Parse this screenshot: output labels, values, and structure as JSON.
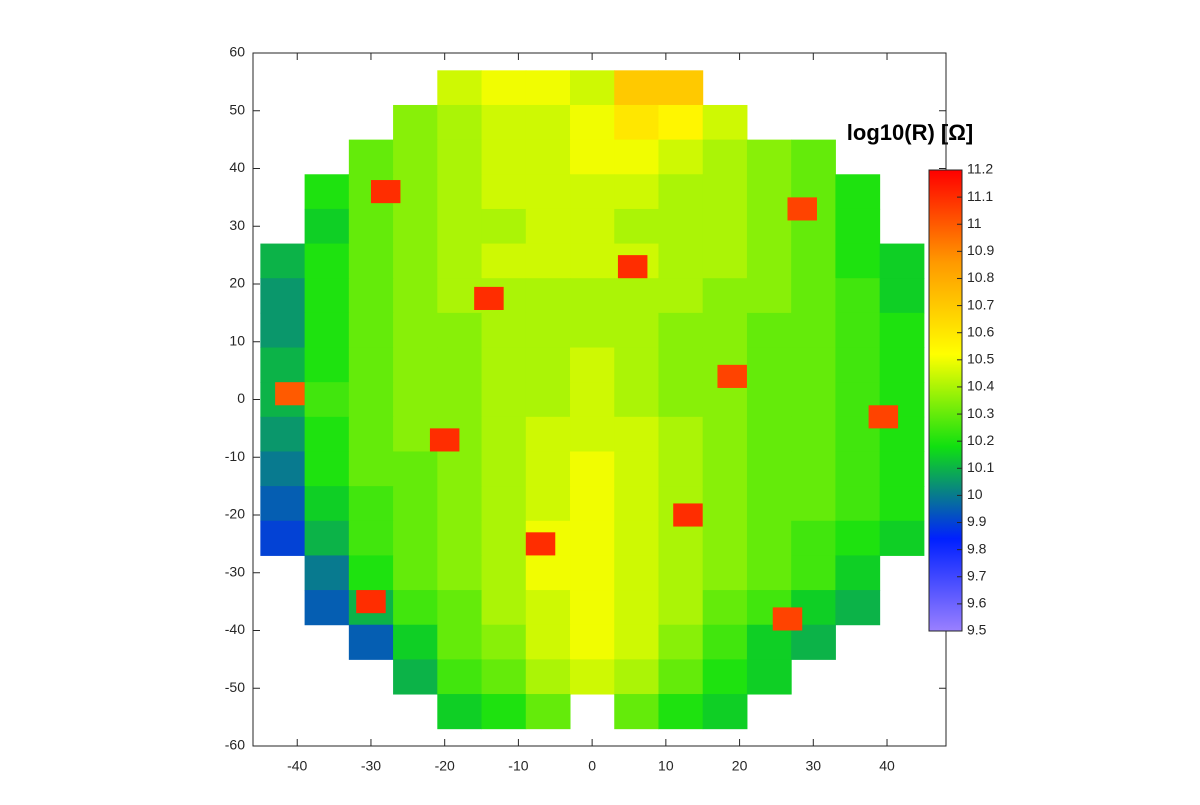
{
  "chart_data": {
    "type": "heatmap",
    "colorbar_label": "log10(R) [Ω]",
    "x": [
      -42,
      -36,
      -30,
      -24,
      -18,
      -12,
      -6,
      0,
      6,
      12,
      18,
      24,
      30,
      36,
      42
    ],
    "y": [
      54,
      48,
      42,
      36,
      30,
      24,
      18,
      12,
      6,
      0,
      -6,
      -12,
      -18,
      -24,
      -30,
      -36,
      -42,
      -48,
      -54
    ],
    "values": [
      [
        null,
        null,
        null,
        null,
        10.45,
        10.5,
        10.5,
        10.45,
        10.7,
        10.7,
        null,
        null,
        null,
        null,
        null
      ],
      [
        null,
        null,
        null,
        10.35,
        10.4,
        10.45,
        10.45,
        10.5,
        10.6,
        10.55,
        10.45,
        null,
        null,
        null,
        null
      ],
      [
        null,
        null,
        10.3,
        10.35,
        10.4,
        10.45,
        10.45,
        10.5,
        10.5,
        10.45,
        10.4,
        10.35,
        10.3,
        null,
        null
      ],
      [
        null,
        10.2,
        10.3,
        10.35,
        10.4,
        10.45,
        10.45,
        10.45,
        10.45,
        10.4,
        10.4,
        10.35,
        10.3,
        10.2,
        null
      ],
      [
        null,
        10.15,
        10.3,
        10.35,
        10.4,
        10.4,
        10.45,
        10.45,
        10.4,
        10.4,
        10.4,
        10.35,
        10.3,
        10.2,
        null
      ],
      [
        10.1,
        10.2,
        10.3,
        10.35,
        10.4,
        10.45,
        10.45,
        10.45,
        10.45,
        10.4,
        10.4,
        10.35,
        10.3,
        10.2,
        10.15
      ],
      [
        10.05,
        10.2,
        10.3,
        10.35,
        10.4,
        10.4,
        10.4,
        10.4,
        10.4,
        10.4,
        10.35,
        10.35,
        10.3,
        10.25,
        10.15
      ],
      [
        10.05,
        10.2,
        10.3,
        10.35,
        10.35,
        10.4,
        10.4,
        10.4,
        10.4,
        10.35,
        10.35,
        10.3,
        10.3,
        10.25,
        10.2
      ],
      [
        10.1,
        10.2,
        10.3,
        10.35,
        10.35,
        10.4,
        10.4,
        10.45,
        10.4,
        10.35,
        10.35,
        10.3,
        10.3,
        10.25,
        10.2
      ],
      [
        10.1,
        10.25,
        10.3,
        10.35,
        10.35,
        10.4,
        10.4,
        10.45,
        10.4,
        10.35,
        10.35,
        10.3,
        10.3,
        10.25,
        10.2
      ],
      [
        10.05,
        10.2,
        10.3,
        10.35,
        10.35,
        10.4,
        10.45,
        10.45,
        10.45,
        10.4,
        10.35,
        10.3,
        10.3,
        10.25,
        10.2
      ],
      [
        10.0,
        10.2,
        10.3,
        10.3,
        10.35,
        10.4,
        10.45,
        10.5,
        10.45,
        10.4,
        10.35,
        10.3,
        10.3,
        10.25,
        10.2
      ],
      [
        9.95,
        10.15,
        10.25,
        10.3,
        10.35,
        10.4,
        10.45,
        10.5,
        10.45,
        10.4,
        10.35,
        10.3,
        10.3,
        10.25,
        10.2
      ],
      [
        9.9,
        10.1,
        10.25,
        10.3,
        10.35,
        10.4,
        10.5,
        10.5,
        10.45,
        10.4,
        10.35,
        10.3,
        10.25,
        10.2,
        10.15
      ],
      [
        null,
        10.0,
        10.2,
        10.3,
        10.35,
        10.4,
        10.5,
        10.5,
        10.45,
        10.4,
        10.35,
        10.3,
        10.25,
        10.15,
        null
      ],
      [
        null,
        9.95,
        10.1,
        10.25,
        10.3,
        10.4,
        10.45,
        10.5,
        10.45,
        10.4,
        10.3,
        10.25,
        10.15,
        10.1,
        null
      ],
      [
        null,
        null,
        9.95,
        10.15,
        10.3,
        10.35,
        10.45,
        10.5,
        10.45,
        10.35,
        10.25,
        10.15,
        10.1,
        null,
        null
      ],
      [
        null,
        null,
        null,
        10.1,
        10.25,
        10.3,
        10.4,
        10.45,
        10.4,
        10.3,
        10.2,
        10.15,
        null,
        null,
        null
      ],
      [
        null,
        null,
        null,
        null,
        10.15,
        10.2,
        10.3,
        null,
        10.3,
        10.2,
        10.15,
        null,
        null,
        null,
        null
      ]
    ],
    "spots": {
      "x": [
        -28,
        28.5,
        5.5,
        -14,
        19,
        -41,
        39.5,
        -20,
        13,
        -7,
        -30,
        26.5
      ],
      "y": [
        36,
        33,
        23,
        17.5,
        4,
        1,
        -3,
        -7,
        -20,
        -25,
        -35,
        -38
      ],
      "values": [
        11.1,
        11.05,
        11.1,
        11.1,
        11.05,
        11.0,
        11.05,
        11.1,
        11.1,
        11.1,
        11.1,
        11.05
      ]
    },
    "xlim": [
      -46,
      48
    ],
    "ylim": [
      -60,
      60
    ],
    "xticks": [
      -40,
      -30,
      -20,
      -10,
      0,
      10,
      20,
      30,
      40
    ],
    "yticks": [
      -60,
      -50,
      -40,
      -30,
      -20,
      -10,
      0,
      10,
      20,
      30,
      40,
      50,
      60
    ],
    "clim": [
      9.5,
      11.2
    ],
    "cticks": [
      9.5,
      9.6,
      9.7,
      9.8,
      9.9,
      10,
      10.1,
      10.2,
      10.3,
      10.4,
      10.5,
      10.6,
      10.7,
      10.8,
      10.9,
      11,
      11.1,
      11.2
    ],
    "colormap": [
      "#9a80ff",
      "#0020ff",
      "#10e010",
      "#ffff00",
      "#ff9900",
      "#ff0000"
    ]
  }
}
